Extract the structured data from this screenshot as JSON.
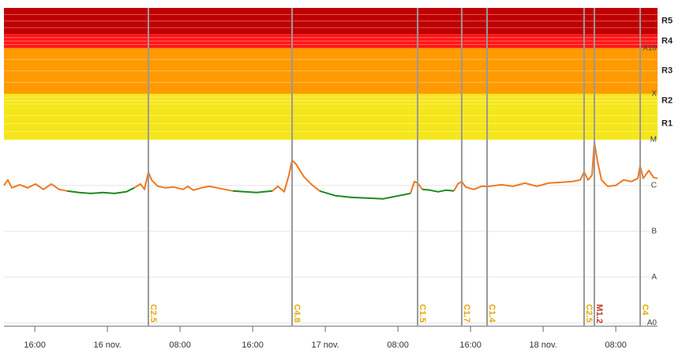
{
  "chart_data": {
    "type": "line",
    "ylog": true,
    "x": [
      12.6,
      13.03,
      13.47,
      14.34,
      15.21,
      16.08,
      16.95,
      17.82,
      18.69,
      19.56,
      20.86,
      22.17,
      23.47,
      24.77,
      26.08,
      26.95,
      27.64,
      28.08,
      28.51,
      28.86,
      29.56,
      30.43,
      31.3,
      32.34,
      32.86,
      33.47,
      34.34,
      35.21,
      36.08,
      36.95,
      37.82,
      39.12,
      40.43,
      41.3,
      42.17,
      42.77,
      43.47,
      43.99,
      44.34,
      44.77,
      45.64,
      46.51,
      47.38,
      49.12,
      50.86,
      52.6,
      54.34,
      56.08,
      57.38,
      57.82,
      58.17,
      58.69,
      59.56,
      60.43,
      61.3,
      62.17,
      62.6,
      63.03,
      63.47,
      64.34,
      65.21,
      66.08,
      67.38,
      68.69,
      69.99,
      71.3,
      72.6,
      73.9,
      75.21,
      76.08,
      76.51,
      76.95,
      77.38,
      77.64,
      77.99,
      78.43,
      79.12,
      79.99,
      80.86,
      81.73,
      82.43,
      82.69,
      83.03,
      83.64,
      84.17,
      84.6
    ],
    "series": [
      {
        "color": "#f07820",
        "values": [
          1e-06,
          1.32e-06,
          8.9e-07,
          1.04e-06,
          8.9e-07,
          1.08e-06,
          8.2e-07,
          1.08e-06,
          8.2e-07,
          7.6e-07,
          null,
          null,
          null,
          null,
          null,
          8.9e-07,
          1.08e-06,
          8.2e-07,
          1.96e-06,
          1.32e-06,
          9.6e-07,
          8.9e-07,
          9.25e-07,
          8.2e-07,
          9.6e-07,
          7.9e-07,
          8.9e-07,
          9.6e-07,
          8.9e-07,
          8.2e-07,
          7.6e-07,
          null,
          null,
          null,
          7.6e-07,
          9.6e-07,
          7.3e-07,
          1.67e-06,
          3.57e-06,
          2.92e-06,
          1.55e-06,
          1.04e-06,
          7.6e-07,
          null,
          null,
          null,
          null,
          null,
          6.7e-07,
          1.22e-06,
          1.13e-06,
          8.2e-07,
          null,
          null,
          null,
          7.6e-07,
          1.08e-06,
          1.22e-06,
          9.25e-07,
          8.2e-07,
          9.6e-07,
          9.6e-07,
          1.04e-06,
          9.6e-07,
          1.13e-06,
          9.6e-07,
          1.13e-06,
          1.17e-06,
          1.22e-06,
          1.32e-06,
          1.96e-06,
          1.32e-06,
          1.67e-06,
          8.87e-06,
          3.29e-06,
          1.32e-06,
          9.6e-07,
          1e-06,
          1.32e-06,
          1.22e-06,
          1.43e-06,
          2.7e-06,
          1.43e-06,
          2.13e-06,
          1.49e-06,
          1.43e-06
        ]
      },
      {
        "color": "#1e8a1e",
        "values": [
          null,
          null,
          null,
          null,
          null,
          null,
          null,
          null,
          null,
          7.6e-07,
          7e-07,
          6.7e-07,
          7e-07,
          6.7e-07,
          7.3e-07,
          8.9e-07,
          null,
          null,
          null,
          null,
          null,
          null,
          null,
          null,
          null,
          null,
          null,
          null,
          null,
          null,
          7.6e-07,
          7.3e-07,
          7e-07,
          7.3e-07,
          7.6e-07,
          null,
          null,
          null,
          null,
          null,
          null,
          null,
          7.6e-07,
          5.97e-07,
          5.5e-07,
          5.3e-07,
          5.1e-07,
          5.97e-07,
          6.7e-07,
          null,
          null,
          8.2e-07,
          7.9e-07,
          7.3e-07,
          7.9e-07,
          7.6e-07,
          null,
          null,
          null,
          null,
          null,
          null,
          null,
          null,
          null,
          null,
          null,
          null,
          null,
          null,
          null,
          null,
          null,
          null,
          null,
          null,
          null,
          null,
          null,
          null,
          null,
          null,
          null,
          null,
          null,
          null
        ]
      }
    ],
    "xlim": [
      12.6,
      84.6
    ],
    "xticks": [
      {
        "value": 16,
        "label": "16:00"
      },
      {
        "value": 24,
        "label": "16 nov."
      },
      {
        "value": 32,
        "label": "08:00"
      },
      {
        "value": 40,
        "label": "16:00"
      },
      {
        "value": 48,
        "label": "17 nov."
      },
      {
        "value": 56,
        "label": "08:00"
      },
      {
        "value": 64,
        "label": "16:00"
      },
      {
        "value": 72,
        "label": "18 nov."
      },
      {
        "value": 80,
        "label": "08:00"
      }
    ],
    "ylim": [
      8.5e-10,
      0.0075
    ],
    "yticks": [
      {
        "value": 1e-09,
        "label": "A0"
      },
      {
        "value": 1e-08,
        "label": "A"
      },
      {
        "value": 1e-07,
        "label": "B"
      },
      {
        "value": 1e-06,
        "label": "C"
      },
      {
        "value": 1e-05,
        "label": "M"
      },
      {
        "value": 0.0001,
        "label": "X"
      },
      {
        "value": 0.001,
        "label": "X10"
      }
    ],
    "bands": [
      {
        "label": "R1",
        "from": 1e-05,
        "to": 5e-05,
        "color": "#f5e61a"
      },
      {
        "label": "R2",
        "from": 5e-05,
        "to": 0.0001,
        "color": "#f5e61a"
      },
      {
        "label": "R3",
        "from": 0.0001,
        "to": 0.001,
        "color": "#ff9a00"
      },
      {
        "label": "R4",
        "from": 0.001,
        "to": 0.002,
        "color": "#ff1414"
      },
      {
        "label": "R5",
        "from": 0.002,
        "to": 0.0075,
        "color": "#c00000"
      }
    ],
    "events": [
      {
        "x": 28.51,
        "label": "C2.5",
        "color": "#e6a800"
      },
      {
        "x": 44.34,
        "label": "C4.8",
        "color": "#e6a800"
      },
      {
        "x": 58.17,
        "label": "C1.5",
        "color": "#e6a800"
      },
      {
        "x": 63.03,
        "label": "C1.7",
        "color": "#e6a800"
      },
      {
        "x": 65.82,
        "label": "C1.4",
        "color": "#e6a800"
      },
      {
        "x": 76.51,
        "label": "C2.5",
        "color": "#e6a800"
      },
      {
        "x": 77.64,
        "label": "M1.2",
        "color": "#c0392b"
      },
      {
        "x": 82.69,
        "label": "C4",
        "color": "#e6a800"
      }
    ],
    "grid": true
  }
}
